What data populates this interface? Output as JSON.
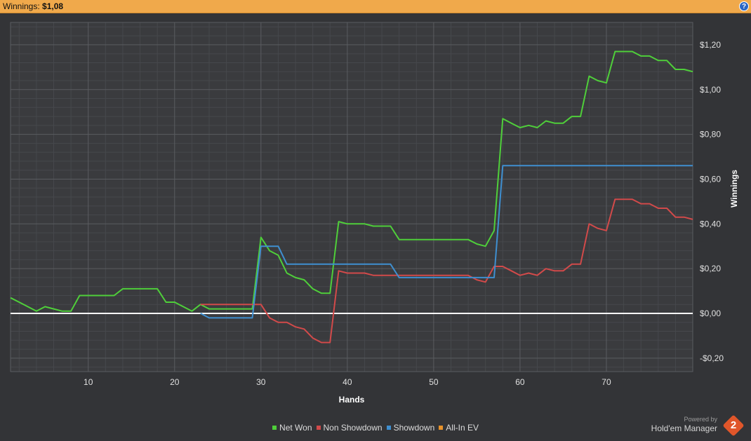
{
  "header": {
    "label": "Winnings:",
    "value": "$1,08",
    "help": "?"
  },
  "colors": {
    "net_won": "#4fcf3a",
    "non_showdown": "#d24a4a",
    "showdown": "#3f8fd0",
    "all_in_ev": "#e8922a",
    "zero_line": "#ffffff"
  },
  "chart_data": {
    "type": "line",
    "xlabel": "Hands",
    "ylabel": "Winnings",
    "xlim": [
      1,
      80
    ],
    "ylim": [
      -0.26,
      1.3
    ],
    "x_ticks": [
      10,
      20,
      30,
      40,
      50,
      60,
      70
    ],
    "y_ticks": [
      {
        "v": 1.2,
        "label": "$1,20"
      },
      {
        "v": 1.0,
        "label": "$1,00"
      },
      {
        "v": 0.8,
        "label": "$0,80"
      },
      {
        "v": 0.6,
        "label": "$0,60"
      },
      {
        "v": 0.4,
        "label": "$0,40"
      },
      {
        "v": 0.2,
        "label": "$0,20"
      },
      {
        "v": 0.0,
        "label": "$0,00"
      },
      {
        "v": -0.2,
        "label": "-$0,20"
      }
    ],
    "grid": true,
    "legend_position": "bottom",
    "series": [
      {
        "name": "Net Won",
        "color": "#4fcf3a",
        "x": [
          1,
          2,
          3,
          4,
          5,
          6,
          7,
          8,
          9,
          10,
          11,
          12,
          13,
          14,
          15,
          16,
          17,
          18,
          19,
          20,
          21,
          22,
          23,
          24,
          25,
          26,
          27,
          28,
          29,
          30,
          31,
          32,
          33,
          34,
          35,
          36,
          37,
          38,
          39,
          40,
          41,
          42,
          43,
          44,
          45,
          46,
          47,
          48,
          49,
          50,
          51,
          52,
          53,
          54,
          55,
          56,
          57,
          58,
          59,
          60,
          61,
          62,
          63,
          64,
          65,
          66,
          67,
          68,
          69,
          70,
          71,
          72,
          73,
          74,
          75,
          76,
          77,
          78,
          79,
          80
        ],
        "y": [
          0.07,
          0.05,
          0.03,
          0.01,
          0.03,
          0.02,
          0.01,
          0.01,
          0.08,
          0.08,
          0.08,
          0.08,
          0.08,
          0.11,
          0.11,
          0.11,
          0.11,
          0.11,
          0.05,
          0.05,
          0.03,
          0.01,
          0.04,
          0.02,
          0.02,
          0.02,
          0.02,
          0.02,
          0.02,
          0.34,
          0.28,
          0.26,
          0.18,
          0.16,
          0.15,
          0.11,
          0.09,
          0.09,
          0.41,
          0.4,
          0.4,
          0.4,
          0.39,
          0.39,
          0.39,
          0.33,
          0.33,
          0.33,
          0.33,
          0.33,
          0.33,
          0.33,
          0.33,
          0.33,
          0.31,
          0.3,
          0.37,
          0.87,
          0.85,
          0.83,
          0.84,
          0.83,
          0.86,
          0.85,
          0.85,
          0.88,
          0.88,
          1.06,
          1.04,
          1.03,
          1.17,
          1.17,
          1.17,
          1.15,
          1.15,
          1.13,
          1.13,
          1.09,
          1.09,
          1.08
        ]
      },
      {
        "name": "Non Showdown",
        "color": "#d24a4a",
        "x": [
          23,
          24,
          25,
          26,
          27,
          28,
          29,
          30,
          31,
          32,
          33,
          34,
          35,
          36,
          37,
          38,
          39,
          40,
          41,
          42,
          43,
          44,
          45,
          46,
          47,
          48,
          49,
          50,
          51,
          52,
          53,
          54,
          55,
          56,
          57,
          58,
          59,
          60,
          61,
          62,
          63,
          64,
          65,
          66,
          67,
          68,
          69,
          70,
          71,
          72,
          73,
          74,
          75,
          76,
          77,
          78,
          79,
          80
        ],
        "y": [
          0.04,
          0.04,
          0.04,
          0.04,
          0.04,
          0.04,
          0.04,
          0.04,
          -0.02,
          -0.04,
          -0.04,
          -0.06,
          -0.07,
          -0.11,
          -0.13,
          -0.13,
          0.19,
          0.18,
          0.18,
          0.18,
          0.17,
          0.17,
          0.17,
          0.17,
          0.17,
          0.17,
          0.17,
          0.17,
          0.17,
          0.17,
          0.17,
          0.17,
          0.15,
          0.14,
          0.21,
          0.21,
          0.19,
          0.17,
          0.18,
          0.17,
          0.2,
          0.19,
          0.19,
          0.22,
          0.22,
          0.4,
          0.38,
          0.37,
          0.51,
          0.51,
          0.51,
          0.49,
          0.49,
          0.47,
          0.47,
          0.43,
          0.43,
          0.42
        ]
      },
      {
        "name": "Showdown",
        "color": "#3f8fd0",
        "x": [
          23,
          24,
          25,
          26,
          27,
          28,
          29,
          30,
          31,
          32,
          33,
          34,
          35,
          36,
          37,
          38,
          39,
          40,
          41,
          42,
          43,
          44,
          45,
          46,
          47,
          48,
          49,
          50,
          51,
          52,
          53,
          54,
          55,
          56,
          57,
          58,
          59,
          60,
          61,
          62,
          63,
          64,
          65,
          66,
          67,
          68,
          69,
          70,
          71,
          72,
          73,
          74,
          75,
          76,
          77,
          78,
          79,
          80
        ],
        "y": [
          0.0,
          -0.02,
          -0.02,
          -0.02,
          -0.02,
          -0.02,
          -0.02,
          0.3,
          0.3,
          0.3,
          0.22,
          0.22,
          0.22,
          0.22,
          0.22,
          0.22,
          0.22,
          0.22,
          0.22,
          0.22,
          0.22,
          0.22,
          0.22,
          0.16,
          0.16,
          0.16,
          0.16,
          0.16,
          0.16,
          0.16,
          0.16,
          0.16,
          0.16,
          0.16,
          0.16,
          0.66,
          0.66,
          0.66,
          0.66,
          0.66,
          0.66,
          0.66,
          0.66,
          0.66,
          0.66,
          0.66,
          0.66,
          0.66,
          0.66,
          0.66,
          0.66,
          0.66,
          0.66,
          0.66,
          0.66,
          0.66,
          0.66,
          0.66
        ]
      },
      {
        "name": "All-In EV",
        "color": "#e8922a",
        "x": [],
        "y": []
      }
    ]
  },
  "branding": {
    "powered_by": "Powered by",
    "name": "Hold'em Manager",
    "logo_text": "2"
  }
}
